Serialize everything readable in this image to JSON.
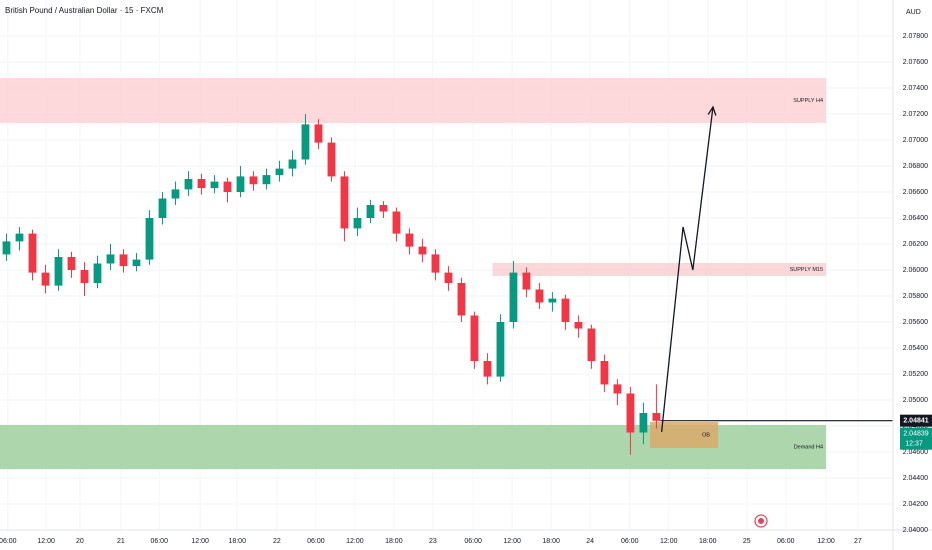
{
  "chart_data": {
    "type": "candlestick",
    "title": "British Pound / Australian Dollar · 15 · FXCM",
    "currency": "AUD",
    "up_color": "#089981",
    "down_color": "#f23645",
    "grid": true,
    "xlim": [
      0,
      137.4
    ],
    "ylim": [
      2.04,
      2.08077
    ],
    "xticks": [
      {
        "value": 1.2,
        "label": "06:00"
      },
      {
        "value": 7.1,
        "label": "12:00"
      },
      {
        "value": 12.3,
        "label": "20"
      },
      {
        "value": 18.6,
        "label": "21"
      },
      {
        "value": 24.5,
        "label": "06:00"
      },
      {
        "value": 30.8,
        "label": "12:00"
      },
      {
        "value": 36.5,
        "label": "18:00"
      },
      {
        "value": 42.6,
        "label": "22"
      },
      {
        "value": 48.6,
        "label": "06:00"
      },
      {
        "value": 54.6,
        "label": "12:00"
      },
      {
        "value": 60.6,
        "label": "18:00"
      },
      {
        "value": 66.6,
        "label": "23"
      },
      {
        "value": 72.8,
        "label": "06:00"
      },
      {
        "value": 78.8,
        "label": "12:00"
      },
      {
        "value": 84.8,
        "label": "18:00"
      },
      {
        "value": 90.8,
        "label": "24"
      },
      {
        "value": 96.9,
        "label": "06:00"
      },
      {
        "value": 102.9,
        "label": "12:00"
      },
      {
        "value": 108.9,
        "label": "18:00"
      },
      {
        "value": 114.9,
        "label": "25"
      },
      {
        "value": 120.9,
        "label": "06:00"
      },
      {
        "value": 127.1,
        "label": "12:00"
      },
      {
        "value": 132,
        "label": "27"
      }
    ],
    "yticks": [
      {
        "value": 2.04,
        "label": "2.04000"
      },
      {
        "value": 2.042,
        "label": "2.04200"
      },
      {
        "value": 2.044,
        "label": "2.04400"
      },
      {
        "value": 2.046,
        "label": "2.04600"
      },
      {
        "value": 2.048,
        "label": "2.04800"
      },
      {
        "value": 2.05,
        "label": "2.05000"
      },
      {
        "value": 2.052,
        "label": "2.05200"
      },
      {
        "value": 2.054,
        "label": "2.05400"
      },
      {
        "value": 2.056,
        "label": "2.05600"
      },
      {
        "value": 2.058,
        "label": "2.05800"
      },
      {
        "value": 2.06,
        "label": "2.06000"
      },
      {
        "value": 2.062,
        "label": "2.06200"
      },
      {
        "value": 2.064,
        "label": "2.06400"
      },
      {
        "value": 2.066,
        "label": "2.06600"
      },
      {
        "value": 2.068,
        "label": "2.06800"
      },
      {
        "value": 2.07,
        "label": "2.07000"
      },
      {
        "value": 2.072,
        "label": "2.07200"
      },
      {
        "value": 2.074,
        "label": "2.07400"
      },
      {
        "value": 2.076,
        "label": "2.07600"
      },
      {
        "value": 2.078,
        "label": "2.07800"
      }
    ],
    "x": [
      1,
      3,
      5,
      7,
      9,
      11,
      13,
      15,
      17,
      19,
      21,
      23,
      25,
      27,
      29,
      31,
      33,
      35,
      37,
      39,
      41,
      43,
      45,
      47,
      49,
      51,
      53,
      55,
      57,
      59,
      61,
      63,
      65,
      67,
      69,
      71,
      73,
      75,
      77,
      79,
      81,
      83,
      85,
      87,
      89,
      91,
      93,
      95,
      97,
      99,
      101
    ],
    "open": [
      2.0612,
      2.0622,
      2.0628,
      2.0598,
      2.0588,
      2.061,
      2.06,
      2.059,
      2.0605,
      2.0612,
      2.0603,
      2.0608,
      2.064,
      2.0655,
      2.0662,
      2.067,
      2.0663,
      2.0668,
      2.066,
      2.0672,
      2.0666,
      2.0673,
      2.0678,
      2.0685,
      2.0712,
      2.0698,
      2.0672,
      2.0632,
      2.064,
      2.065,
      2.0645,
      2.0628,
      2.0618,
      2.0612,
      2.0598,
      2.059,
      2.0565,
      2.053,
      2.0518,
      2.056,
      2.0598,
      2.0585,
      2.0575,
      2.0578,
      2.056,
      2.0555,
      2.053,
      2.0512,
      2.0505,
      2.0475,
      2.049
    ],
    "high": [
      2.0628,
      2.0633,
      2.0631,
      2.0604,
      2.0616,
      2.0614,
      2.0606,
      2.0611,
      2.062,
      2.0616,
      2.0613,
      2.0646,
      2.066,
      2.0668,
      2.0676,
      2.0674,
      2.0673,
      2.0671,
      2.068,
      2.0676,
      2.0678,
      2.0684,
      2.0692,
      2.072,
      2.0716,
      2.0702,
      2.0676,
      2.0648,
      2.0654,
      2.0653,
      2.0648,
      2.0632,
      2.0624,
      2.0616,
      2.0603,
      2.0594,
      2.0568,
      2.0536,
      2.0566,
      2.0607,
      2.0602,
      2.059,
      2.0583,
      2.0581,
      2.0565,
      2.0558,
      2.0535,
      2.0516,
      2.051,
      2.0498,
      2.0512
    ],
    "low": [
      2.0607,
      2.0615,
      2.0592,
      2.0582,
      2.0584,
      2.0594,
      2.058,
      2.0586,
      2.06,
      2.0598,
      2.0599,
      2.0604,
      2.0635,
      2.065,
      2.0657,
      2.0658,
      2.0659,
      2.0652,
      2.0656,
      2.0661,
      2.0662,
      2.0668,
      2.0672,
      2.0681,
      2.0693,
      2.0668,
      2.0622,
      2.0626,
      2.0636,
      2.064,
      2.0622,
      2.0612,
      2.0606,
      2.0592,
      2.0584,
      2.056,
      2.0524,
      2.0512,
      2.0514,
      2.0555,
      2.0579,
      2.057,
      2.0568,
      2.0554,
      2.0548,
      2.0524,
      2.0506,
      2.0496,
      2.0458,
      2.0466,
      2.0478
    ],
    "close": [
      2.0622,
      2.0628,
      2.0598,
      2.0588,
      2.061,
      2.06,
      2.059,
      2.0605,
      2.0612,
      2.0603,
      2.0608,
      2.064,
      2.0655,
      2.0662,
      2.067,
      2.0663,
      2.0668,
      2.066,
      2.0672,
      2.0666,
      2.0673,
      2.0678,
      2.0685,
      2.0712,
      2.0698,
      2.0672,
      2.0632,
      2.064,
      2.065,
      2.0645,
      2.0628,
      2.0618,
      2.0612,
      2.0598,
      2.059,
      2.0565,
      2.053,
      2.0518,
      2.056,
      2.0598,
      2.0585,
      2.0575,
      2.0578,
      2.056,
      2.0555,
      2.053,
      2.0512,
      2.0505,
      2.0475,
      2.049,
      2.0484
    ],
    "zones": [
      {
        "label": "SUPPLY H4",
        "top": 2.07477,
        "bottom": 2.07131,
        "x0": 0,
        "x1": 127.1,
        "color": "#fdd5d8"
      },
      {
        "label": "SUPPLY M15",
        "top": 2.06054,
        "bottom": 2.05954,
        "x0": 75.8,
        "x1": 127.1,
        "color": "#fbd3d6"
      },
      {
        "label": "Demand H4",
        "top": 2.04808,
        "bottom": 2.04469,
        "x0": 0,
        "x1": 127.1,
        "color": "#a5d1a3"
      },
      {
        "label": "OB",
        "top": 2.04831,
        "bottom": 2.04631,
        "x0": 100,
        "x1": 110.5,
        "color": "#d9a96a"
      }
    ],
    "projection": {
      "x": [
        101.8,
        105.1,
        106.6,
        109.7
      ],
      "y": [
        2.04754,
        2.06331,
        2.06,
        2.07254
      ]
    },
    "last_price": 2.04841,
    "bid_price": 2.04839,
    "countdown": "12:37"
  }
}
